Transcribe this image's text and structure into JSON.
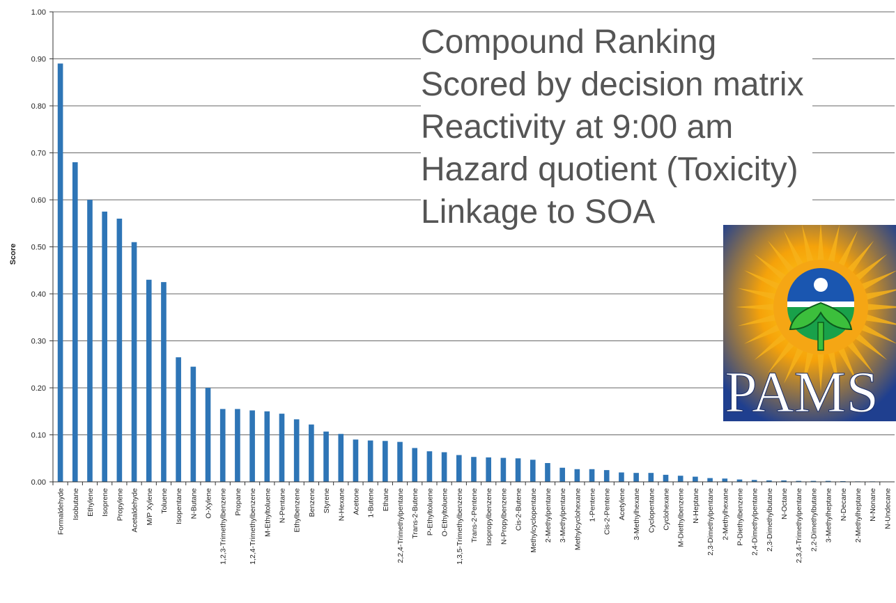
{
  "annotation": {
    "lines": [
      "Compound Ranking",
      "Scored by decision matrix",
      "Reactivity at 9:00 am",
      "Hazard quotient (Toxicity)",
      "Linkage to SOA"
    ]
  },
  "logo": {
    "text": "PAMS"
  },
  "colors": {
    "bar": "#2e75b6",
    "grid": "#666666"
  },
  "chart_data": {
    "type": "bar",
    "ylabel": "Score",
    "ylim": [
      0,
      1.0
    ],
    "yticks": [
      "0.00",
      "0.10",
      "0.20",
      "0.30",
      "0.40",
      "0.50",
      "0.60",
      "0.70",
      "0.80",
      "0.90",
      "1.00"
    ],
    "grid": true,
    "categories": [
      "Formaldehyde",
      "Isobutane",
      "Ethylene",
      "Isoprene",
      "Propylene",
      "Acetaldehyde",
      "M/P Xylene",
      "Toluene",
      "Isopentane",
      "N-Butane",
      "O-Xylene",
      "1,2,3-Trimethylbenzene",
      "Propane",
      "1,2,4-Trimethylbenzene",
      "M-Ethyltoluene",
      "N-Pentane",
      "Ethylbenzene",
      "Benzene",
      "Styrene",
      "N-Hexane",
      "Acetone",
      "1-Butene",
      "Ethane",
      "2,2,4-Trimethylpentane",
      "Trans-2-Butene",
      "P-Ethyltoluene",
      "O-Ethyltoluene",
      "1,3,5-Trimethylbenzene",
      "Trans-2-Pentene",
      "Isopropylbenzene",
      "N-Propylbenzene",
      "Cis-2-Butene",
      "Methylcyclopentane",
      "2-Methylpentane",
      "3-Methylpentane",
      "Methylcyclohexane",
      "1-Pentene",
      "Cis-2-Pentene",
      "Acetylene",
      "3-Methylhexane",
      "Cyclopentane",
      "Cyclohexane",
      "M-Diethylbenzene",
      "N-Heptane",
      "2,3-Dimethylpentane",
      "2-Methylhexane",
      "P-Diethylbenzene",
      "2,4-Dimethylpentane",
      "2,3-Dimethylbutane",
      "N-Octane",
      "2,3,4-Trimethylpentane",
      "2,2-Dimethylbutane",
      "3-Methylheptane",
      "N-Decane",
      "2-Methylheptane",
      "N-Nonane",
      "N-Undecane"
    ],
    "values": [
      0.89,
      0.68,
      0.6,
      0.575,
      0.56,
      0.51,
      0.43,
      0.425,
      0.265,
      0.245,
      0.2,
      0.155,
      0.155,
      0.152,
      0.15,
      0.145,
      0.133,
      0.122,
      0.107,
      0.102,
      0.09,
      0.088,
      0.087,
      0.085,
      0.072,
      0.065,
      0.063,
      0.057,
      0.053,
      0.052,
      0.051,
      0.05,
      0.047,
      0.04,
      0.03,
      0.027,
      0.027,
      0.025,
      0.02,
      0.019,
      0.019,
      0.015,
      0.013,
      0.011,
      0.008,
      0.007,
      0.005,
      0.004,
      0.003,
      0.003,
      0.002,
      0.002,
      0.002,
      0.0015,
      0.001,
      0.001,
      0.0005
    ]
  }
}
